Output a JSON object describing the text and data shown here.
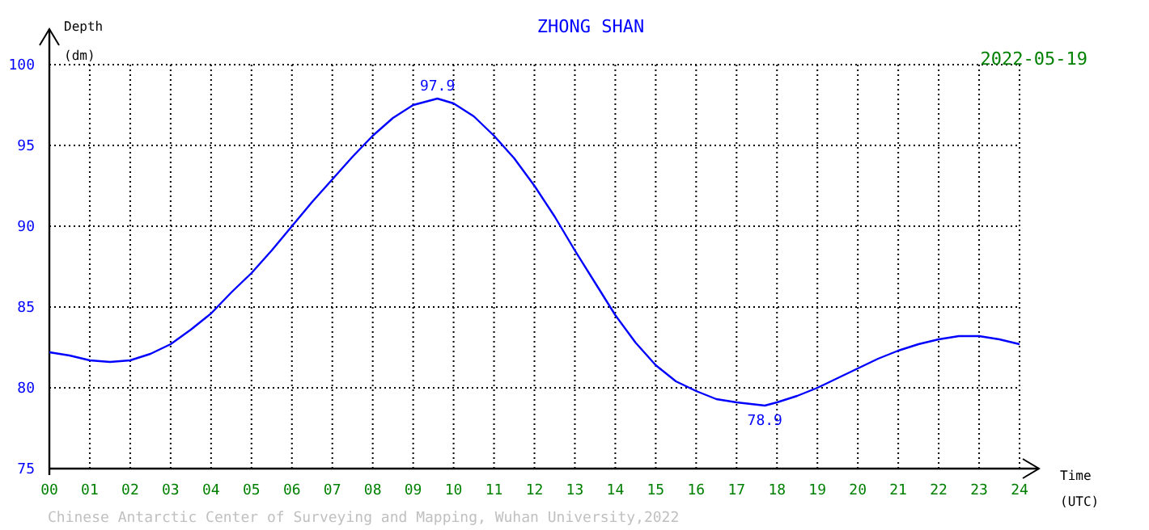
{
  "chart_data": {
    "type": "line",
    "title": "ZHONG SHAN",
    "xlabel": "Time (UTC)",
    "ylabel": "Depth (dm)",
    "x": [
      0,
      0.5,
      1,
      1.5,
      2,
      2.5,
      3,
      3.5,
      4,
      4.5,
      5,
      5.5,
      6,
      6.5,
      7,
      7.5,
      8,
      8.5,
      9,
      9.6,
      10,
      10.5,
      11,
      11.5,
      12,
      12.5,
      13,
      13.5,
      14,
      14.5,
      15,
      15.5,
      16,
      16.5,
      17,
      17.7,
      18,
      18.5,
      19,
      19.5,
      20,
      20.5,
      21,
      21.5,
      22,
      22.5,
      23,
      23.5,
      24
    ],
    "series": [
      {
        "color": "#0000ff",
        "values": [
          82.2,
          82.0,
          81.7,
          81.6,
          81.7,
          82.1,
          82.7,
          83.6,
          84.6,
          85.9,
          87.1,
          88.5,
          90.0,
          91.5,
          92.9,
          94.3,
          95.6,
          96.7,
          97.5,
          97.9,
          97.6,
          96.8,
          95.6,
          94.2,
          92.5,
          90.6,
          88.5,
          86.5,
          84.5,
          82.8,
          81.4,
          80.4,
          79.8,
          79.3,
          79.1,
          78.9,
          79.1,
          79.5,
          80.0,
          80.6,
          81.2,
          81.8,
          82.3,
          82.7,
          83.0,
          83.2,
          83.2,
          83.0,
          82.7
        ]
      }
    ],
    "xlim": [
      0,
      24
    ],
    "xticks": [
      {
        "value": 0,
        "label": "00"
      },
      {
        "value": 1,
        "label": "01"
      },
      {
        "value": 2,
        "label": "02"
      },
      {
        "value": 3,
        "label": "03"
      },
      {
        "value": 4,
        "label": "04"
      },
      {
        "value": 5,
        "label": "05"
      },
      {
        "value": 6,
        "label": "06"
      },
      {
        "value": 7,
        "label": "07"
      },
      {
        "value": 8,
        "label": "08"
      },
      {
        "value": 9,
        "label": "09"
      },
      10,
      11,
      12,
      13,
      14,
      15,
      16,
      17,
      18,
      19,
      20,
      21,
      22,
      23,
      24
    ],
    "ylim": [
      75,
      100
    ],
    "yticks": [
      75,
      80,
      85,
      90,
      95,
      100
    ],
    "grid": true,
    "marker": "none",
    "line_style": "solid",
    "annotations": [
      {
        "text": "97.9",
        "x": 9.6,
        "y": 97.9
      },
      {
        "text": "78.9",
        "x": 17.7,
        "y": 78.9
      },
      "2022-05-19",
      "Chinese Antarctic Center of Surveying and Mapping, Wuhan University,2022"
    ]
  }
}
